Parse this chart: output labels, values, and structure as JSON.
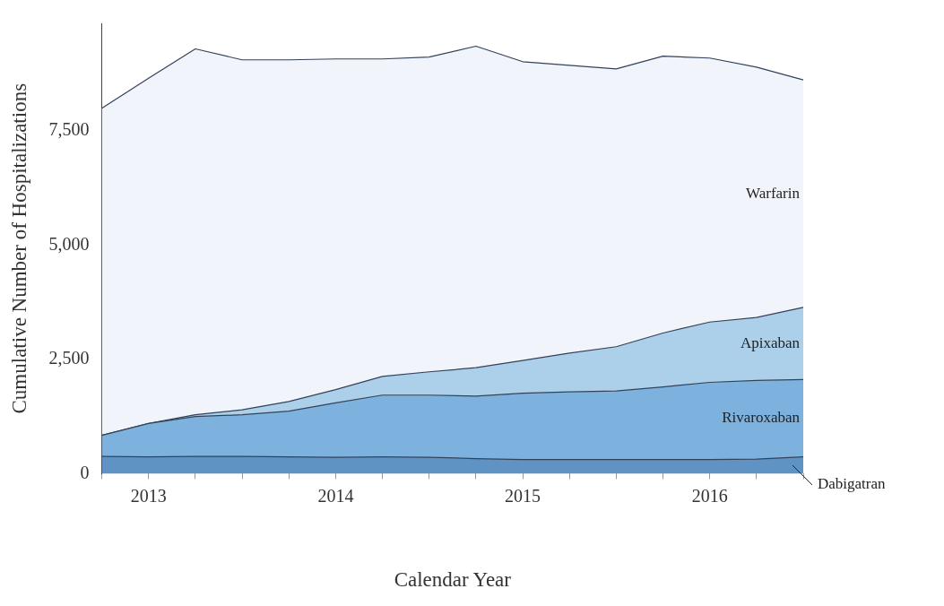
{
  "chart_data": {
    "type": "area",
    "stacked": true,
    "xlabel": "Calendar Year",
    "ylabel": "Cumulative Number of Hospitalizations",
    "categories": [
      null,
      "2013",
      null,
      null,
      null,
      "2014",
      null,
      null,
      null,
      "2015",
      null,
      null,
      null,
      "2016",
      null,
      null
    ],
    "ylim": [
      0,
      9860
    ],
    "yticks": [
      0,
      {
        "value": 2500,
        "label": "2,500"
      },
      {
        "value": 5000,
        "label": "5,000"
      },
      {
        "value": 7500,
        "label": "7,500"
      }
    ],
    "grid": false,
    "legend": false,
    "series": [
      {
        "name": "Dabigatran",
        "color": "#5f93c4",
        "values": [
          380,
          370,
          380,
          380,
          370,
          360,
          370,
          360,
          330,
          310,
          310,
          310,
          310,
          310,
          320,
          370
        ]
      },
      {
        "name": "Rivaroxaban",
        "color": "#7eb2de",
        "values": [
          460,
          730,
          870,
          910,
          1000,
          1190,
          1350,
          1360,
          1370,
          1450,
          1480,
          1500,
          1590,
          1690,
          1720,
          1690
        ]
      },
      {
        "name": "Apixaban",
        "color": "#acd0ea",
        "values": [
          0,
          0,
          40,
          110,
          210,
          290,
          410,
          510,
          620,
          720,
          850,
          970,
          1180,
          1320,
          1380,
          1580
        ]
      },
      {
        "name": "Warfarin",
        "color": "#f1f5fb",
        "values": [
          7160,
          7560,
          8010,
          7660,
          7480,
          7240,
          6950,
          6890,
          7040,
          6540,
          6300,
          6080,
          6060,
          5780,
          5480,
          4980
        ]
      }
    ]
  }
}
